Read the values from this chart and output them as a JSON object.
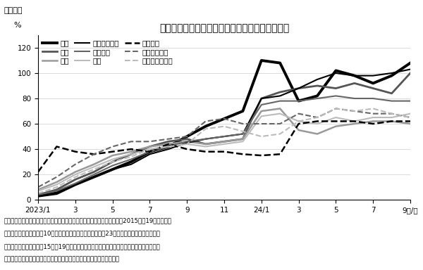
{
  "title": "主要国における中国人観光客数の回復水準の推移",
  "header": "［図表］",
  "ylabel": "%",
  "ylim": [
    0,
    130
  ],
  "yticks": [
    0,
    20,
    40,
    60,
    80,
    100,
    120
  ],
  "note_line1": "（注）　中国人のアウトバウンドに関して当社で入手できたもののうち、2015年〜19年の月平均",
  "note_line2": "　　　中国人観光客数が10万人以上の国を表示。回復水準は23年以降の各月の各国に向かう",
  "note_line3": "　　　中国人観光客数を15年〜19年同月平均の各国に向かう中国人観光客数で割って計算。",
  "note_line4": "（出所）　ＪＮＴＯ「訪日外客数」、ＣＥＩＣ資料から浜銀総研作成。",
  "x_labels": [
    "2023/1",
    "3",
    "5",
    "7",
    "9",
    "11",
    "24/1",
    "3",
    "5",
    "7",
    "9年/月"
  ],
  "x_positions": [
    0,
    2,
    4,
    6,
    8,
    10,
    12,
    14,
    16,
    18,
    20
  ],
  "series": [
    {
      "name": "日本",
      "color": "#000000",
      "linewidth": 2.8,
      "linestyle": "solid",
      "data": [
        3,
        5,
        12,
        18,
        24,
        30,
        38,
        42,
        50,
        58,
        64,
        70,
        110,
        108,
        78,
        82,
        102,
        98,
        92,
        98,
        108
      ]
    },
    {
      "name": "韓国",
      "color": "#555555",
      "linewidth": 2.0,
      "linestyle": "solid",
      "data": [
        4,
        8,
        16,
        22,
        30,
        36,
        42,
        46,
        48,
        44,
        46,
        48,
        80,
        85,
        88,
        90,
        88,
        92,
        88,
        84,
        100
      ]
    },
    {
      "name": "タイ",
      "color": "#999999",
      "linewidth": 1.8,
      "linestyle": "solid",
      "data": [
        8,
        14,
        22,
        28,
        35,
        38,
        42,
        44,
        46,
        44,
        46,
        48,
        70,
        72,
        55,
        52,
        58,
        60,
        62,
        62,
        60
      ]
    },
    {
      "name": "シンガポール",
      "color": "#000000",
      "linewidth": 1.5,
      "linestyle": "solid",
      "data": [
        3,
        6,
        12,
        18,
        24,
        28,
        36,
        40,
        45,
        48,
        50,
        52,
        80,
        82,
        88,
        95,
        100,
        98,
        98,
        100,
        103
      ]
    },
    {
      "name": "ベトナム",
      "color": "#666666",
      "linewidth": 1.5,
      "linestyle": "solid",
      "data": [
        4,
        7,
        13,
        20,
        27,
        32,
        38,
        42,
        46,
        48,
        50,
        52,
        75,
        78,
        78,
        80,
        82,
        80,
        80,
        78,
        78
      ]
    },
    {
      "name": "米国",
      "color": "#bbbbbb",
      "linewidth": 1.5,
      "linestyle": "solid",
      "data": [
        7,
        12,
        20,
        26,
        32,
        36,
        40,
        42,
        44,
        42,
        44,
        46,
        66,
        68,
        62,
        60,
        65,
        62,
        65,
        65,
        68
      ]
    },
    {
      "name": "ブルネイ",
      "color": "#000000",
      "linewidth": 1.8,
      "linestyle": "dashed",
      "data": [
        22,
        42,
        38,
        36,
        38,
        40,
        38,
        44,
        40,
        38,
        38,
        36,
        35,
        36,
        60,
        62,
        62,
        62,
        60,
        62,
        62
      ]
    },
    {
      "name": "インドネシア",
      "color": "#666666",
      "linewidth": 1.5,
      "linestyle": "dashed",
      "data": [
        10,
        18,
        28,
        36,
        42,
        46,
        46,
        48,
        50,
        62,
        64,
        60,
        60,
        60,
        68,
        65,
        72,
        70,
        68,
        68,
        65
      ]
    },
    {
      "name": "オーストラリア",
      "color": "#bbbbbb",
      "linewidth": 1.5,
      "linestyle": "dashed",
      "data": [
        5,
        10,
        18,
        24,
        30,
        34,
        40,
        42,
        44,
        56,
        58,
        54,
        50,
        52,
        62,
        65,
        72,
        70,
        72,
        68,
        65
      ]
    }
  ]
}
